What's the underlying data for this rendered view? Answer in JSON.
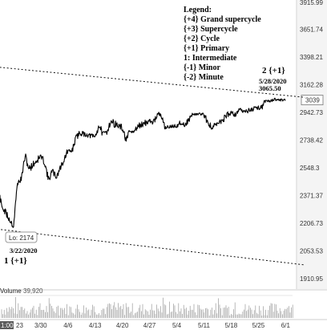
{
  "chart_data": {
    "type": "line",
    "symbol_price_axis": {
      "ticks": [
        "3915.99",
        "3651.74",
        "3398.21",
        "3162.28",
        "2942.73",
        "2738.42",
        "2548.3",
        "2371.37",
        "2206.73",
        "2053.53",
        "1910.95"
      ],
      "last_price_label": "3039",
      "range": [
        1910.95,
        3915.99
      ],
      "scale": "log"
    },
    "x_axis": {
      "ticks": [
        "1:00",
        "23",
        "3/30",
        "4/6",
        "4/13",
        "4/20",
        "4/27",
        "5/4",
        "5/11",
        "5/18",
        "5/25",
        "6/1"
      ]
    },
    "series": [
      {
        "values_keypoints": [
          {
            "date": "2020-03-17",
            "price": 2529
          },
          {
            "date": "2020-03-18",
            "price": 2398
          },
          {
            "date": "2020-03-19",
            "price": 2409
          },
          {
            "date": "2020-03-20",
            "price": 2304
          },
          {
            "date": "2020-03-23",
            "price": 2191
          },
          {
            "date": "2020-03-24",
            "price": 2447
          },
          {
            "date": "2020-03-25",
            "price": 2475
          },
          {
            "date": "2020-03-26",
            "price": 2630
          },
          {
            "date": "2020-03-27",
            "price": 2541
          },
          {
            "date": "2020-03-30",
            "price": 2626
          },
          {
            "date": "2020-03-31",
            "price": 2585
          },
          {
            "date": "2020-04-01",
            "price": 2470
          },
          {
            "date": "2020-04-02",
            "price": 2526
          },
          {
            "date": "2020-04-03",
            "price": 2488
          },
          {
            "date": "2020-04-06",
            "price": 2664
          },
          {
            "date": "2020-04-07",
            "price": 2659
          },
          {
            "date": "2020-04-08",
            "price": 2750
          },
          {
            "date": "2020-04-09",
            "price": 2790
          },
          {
            "date": "2020-04-13",
            "price": 2761
          },
          {
            "date": "2020-04-14",
            "price": 2846
          },
          {
            "date": "2020-04-15",
            "price": 2783
          },
          {
            "date": "2020-04-16",
            "price": 2800
          },
          {
            "date": "2020-04-17",
            "price": 2875
          },
          {
            "date": "2020-04-20",
            "price": 2823
          },
          {
            "date": "2020-04-21",
            "price": 2737
          },
          {
            "date": "2020-04-22",
            "price": 2799
          },
          {
            "date": "2020-04-23",
            "price": 2797
          },
          {
            "date": "2020-04-24",
            "price": 2837
          },
          {
            "date": "2020-04-27",
            "price": 2878
          },
          {
            "date": "2020-04-28",
            "price": 2863
          },
          {
            "date": "2020-04-29",
            "price": 2939
          },
          {
            "date": "2020-04-30",
            "price": 2912
          },
          {
            "date": "2020-05-01",
            "price": 2830
          },
          {
            "date": "2020-05-04",
            "price": 2842
          },
          {
            "date": "2020-05-05",
            "price": 2868
          },
          {
            "date": "2020-05-06",
            "price": 2848
          },
          {
            "date": "2020-05-07",
            "price": 2881
          },
          {
            "date": "2020-05-08",
            "price": 2929
          },
          {
            "date": "2020-05-11",
            "price": 2930
          },
          {
            "date": "2020-05-12",
            "price": 2870
          },
          {
            "date": "2020-05-13",
            "price": 2820
          },
          {
            "date": "2020-05-14",
            "price": 2852
          },
          {
            "date": "2020-05-15",
            "price": 2863
          },
          {
            "date": "2020-05-18",
            "price": 2953
          },
          {
            "date": "2020-05-19",
            "price": 2922
          },
          {
            "date": "2020-05-20",
            "price": 2971
          },
          {
            "date": "2020-05-21",
            "price": 2948
          },
          {
            "date": "2020-05-22",
            "price": 2955
          },
          {
            "date": "2020-05-26",
            "price": 2991
          },
          {
            "date": "2020-05-27",
            "price": 3036
          },
          {
            "date": "2020-05-28",
            "price": 3029
          },
          {
            "date": "2020-05-29",
            "price": 3044
          },
          {
            "date": "2020-06-01",
            "price": 3039
          }
        ]
      }
    ],
    "trendlines": [
      {
        "style": "dotted",
        "from": {
          "date": "2020-03-13",
          "price": 3330
        },
        "to": {
          "date": "2020-06-06",
          "price": 3060
        }
      },
      {
        "style": "dotted",
        "from": {
          "date": "2020-03-17",
          "price": 2178
        },
        "to": {
          "date": "2020-06-06",
          "price": 1980
        }
      }
    ],
    "legend": {
      "title": "Legend:",
      "items": [
        "{+4}  Grand supercycle",
        "{+3} Supercycle",
        "{+2} Cycle",
        "{+1} Primary",
        "1: Intermediate",
        "{-1} Minor",
        "{-2} Minute"
      ]
    },
    "annotations": {
      "peak_wave": "2 {+1}",
      "peak_date": "5/28/2020",
      "peak_value": "3065.50",
      "low_badge": "Lo: 2174",
      "low_date": "3/22/2020",
      "low_wave": "1 {+1}"
    },
    "volume": {
      "label": "Volume",
      "value": "39,920"
    }
  }
}
